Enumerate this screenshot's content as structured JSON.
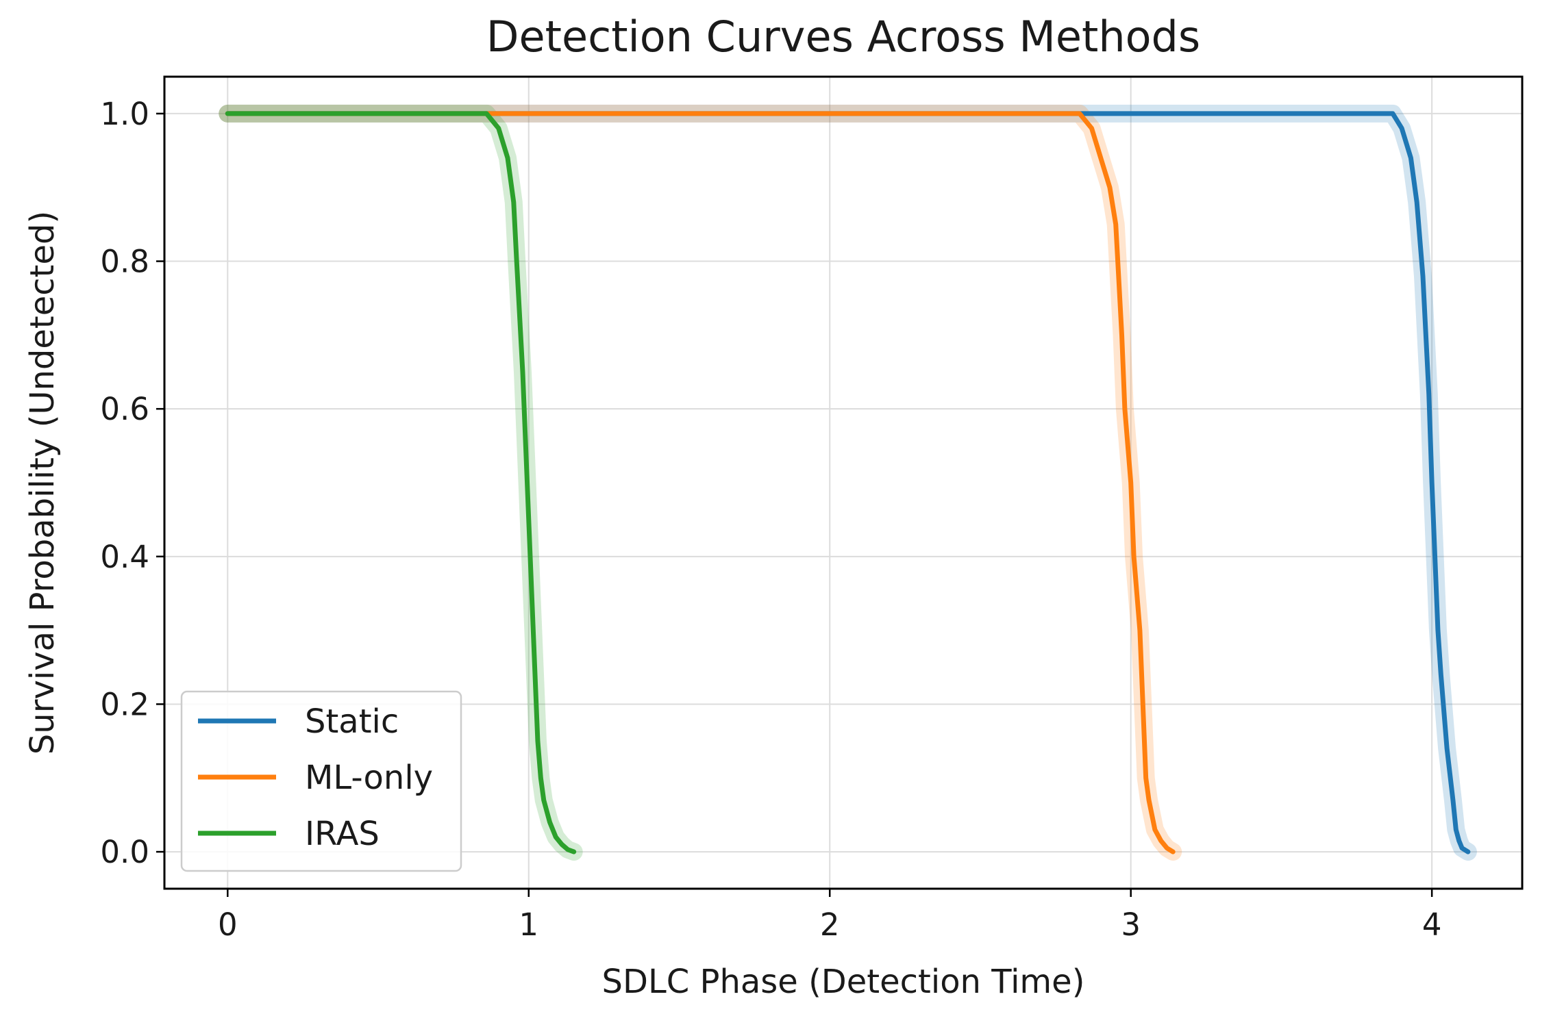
{
  "chart_data": {
    "type": "line",
    "title": "Detection Curves Across Methods",
    "xlabel": "SDLC Phase (Detection Time)",
    "ylabel": "Survival Probability (Undetected)",
    "xlim": [
      -0.21,
      4.3
    ],
    "ylim": [
      -0.05,
      1.05
    ],
    "xticks": [
      0,
      1,
      2,
      3,
      4
    ],
    "xtick_labels": [
      "0",
      "1",
      "2",
      "3",
      "4"
    ],
    "yticks": [
      0.0,
      0.2,
      0.4,
      0.6,
      0.8,
      1.0
    ],
    "ytick_labels": [
      "0.0",
      "0.2",
      "0.4",
      "0.6",
      "0.8",
      "1.0"
    ],
    "grid": true,
    "legend_position": "lower-left",
    "series": [
      {
        "name": "Static",
        "color": "#1f77b4",
        "x": [
          0.0,
          3.87,
          3.9,
          3.93,
          3.95,
          3.97,
          3.99,
          4.0,
          4.01,
          4.02,
          4.03,
          4.05,
          4.07,
          4.08,
          4.09,
          4.1,
          4.12
        ],
        "y": [
          1.0,
          1.0,
          0.98,
          0.94,
          0.88,
          0.78,
          0.62,
          0.5,
          0.4,
          0.3,
          0.24,
          0.14,
          0.07,
          0.03,
          0.015,
          0.005,
          0.0
        ]
      },
      {
        "name": "ML-only",
        "color": "#ff7f0e",
        "x": [
          0.0,
          2.83,
          2.87,
          2.9,
          2.93,
          2.95,
          2.97,
          2.98,
          3.0,
          3.01,
          3.03,
          3.04,
          3.05,
          3.06,
          3.08,
          3.1,
          3.12,
          3.14
        ],
        "y": [
          1.0,
          1.0,
          0.98,
          0.94,
          0.9,
          0.85,
          0.7,
          0.6,
          0.5,
          0.4,
          0.3,
          0.2,
          0.1,
          0.07,
          0.03,
          0.015,
          0.005,
          0.0
        ]
      },
      {
        "name": "IRAS",
        "color": "#2ca02c",
        "x": [
          0.0,
          0.86,
          0.9,
          0.93,
          0.95,
          0.96,
          0.98,
          0.99,
          1.0,
          1.01,
          1.02,
          1.03,
          1.04,
          1.05,
          1.07,
          1.09,
          1.11,
          1.13,
          1.15
        ],
        "y": [
          1.0,
          1.0,
          0.98,
          0.94,
          0.88,
          0.8,
          0.65,
          0.55,
          0.45,
          0.35,
          0.25,
          0.15,
          0.1,
          0.07,
          0.04,
          0.02,
          0.01,
          0.003,
          0.0
        ]
      }
    ]
  }
}
